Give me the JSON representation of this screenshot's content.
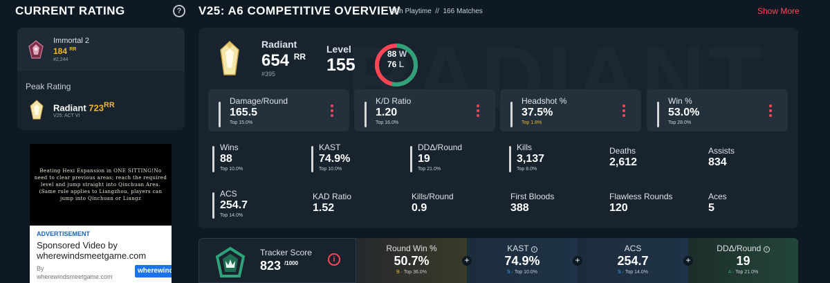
{
  "header": {
    "current_rating_title": "CURRENT RATING",
    "help_glyph": "?",
    "overview_title": "V25: A6 COMPETITIVE OVERVIEW",
    "playtime": "86h Playtime",
    "separator": "//",
    "matches": "166 Matches",
    "show_more": "Show More"
  },
  "current_rank": {
    "name": "Immortal 2",
    "rr": "184",
    "rr_unit": "RR",
    "position": "#2,244",
    "peak_label": "Peak Rating",
    "peak_name": "Radiant",
    "peak_rr": "723",
    "peak_rr_unit": "RR",
    "peak_act": "V25: ACT VI"
  },
  "ad": {
    "video_text": "Beating Hexi Expansion in ONE SITTING!No need to clear previous areas; reach the required level and jump straight into Qinchuan Area. (Same rule applies to Liangzhou, players can jump into Qinchuan or Liangz",
    "label": "ADVERTISEMENT",
    "title": "Sponsored Video by wherewindsmeetgame.com",
    "by_line_1": "By",
    "by_line_2": "wherewindsmeetgame.com",
    "cta": "wherewinds"
  },
  "overview": {
    "background_text": "RADIANT",
    "rank_name": "Radiant",
    "rr": "654",
    "rr_unit": "RR",
    "position": "#395",
    "level_label": "Level",
    "level_value": "155",
    "wins": "88",
    "wins_unit": "W",
    "losses": "76",
    "losses_unit": "L",
    "colors": {
      "win": "#2ea37a",
      "loss": "#ff4655",
      "accent": "#ff4655",
      "gold": "#f0b62c"
    }
  },
  "stat_cards": [
    {
      "label": "Damage/Round",
      "value": "165.5",
      "rank": "Top 15.0%"
    },
    {
      "label": "K/D Ratio",
      "value": "1.20",
      "rank": "Top 16.0%"
    },
    {
      "label": "Headshot %",
      "value": "37.5%",
      "rank": "Top 1.8%"
    },
    {
      "label": "Win %",
      "value": "53.0%",
      "rank": "Top 28.0%"
    }
  ],
  "grid": [
    {
      "label": "Wins",
      "value": "88",
      "rank": "Top 10.0%"
    },
    {
      "label": "KAST",
      "value": "74.9%",
      "rank": "Top 10.0%"
    },
    {
      "label": "DDΔ/Round",
      "value": "19",
      "rank": "Top 21.0%"
    },
    {
      "label": "Kills",
      "value": "3,137",
      "rank": "Top 8.0%"
    },
    {
      "label": "Deaths",
      "value": "2,612",
      "rank": ""
    },
    {
      "label": "Assists",
      "value": "834",
      "rank": ""
    },
    {
      "label": "ACS",
      "value": "254.7",
      "rank": "Top 14.0%"
    },
    {
      "label": "KAD Ratio",
      "value": "1.52",
      "rank": ""
    },
    {
      "label": "Kills/Round",
      "value": "0.9",
      "rank": ""
    },
    {
      "label": "First Bloods",
      "value": "388",
      "rank": ""
    },
    {
      "label": "Flawless Rounds",
      "value": "120",
      "rank": ""
    },
    {
      "label": "Aces",
      "value": "5",
      "rank": ""
    }
  ],
  "tracker": {
    "label": "Tracker Score",
    "value": "823",
    "max": "/1000",
    "info_glyph": "i",
    "plus_glyph": "+",
    "cells": [
      {
        "label": "Round Win %",
        "value": "50.7%",
        "grade": "B",
        "rank": "Top 36.0%"
      },
      {
        "label": "KAST",
        "value": "74.9%",
        "grade": "S",
        "rank": "Top 10.0%"
      },
      {
        "label": "ACS",
        "value": "254.7",
        "grade": "S",
        "rank": "Top 14.0%"
      },
      {
        "label": "DDΔ/Round",
        "value": "19",
        "grade": "A",
        "rank": "Top 21.0%"
      }
    ]
  }
}
